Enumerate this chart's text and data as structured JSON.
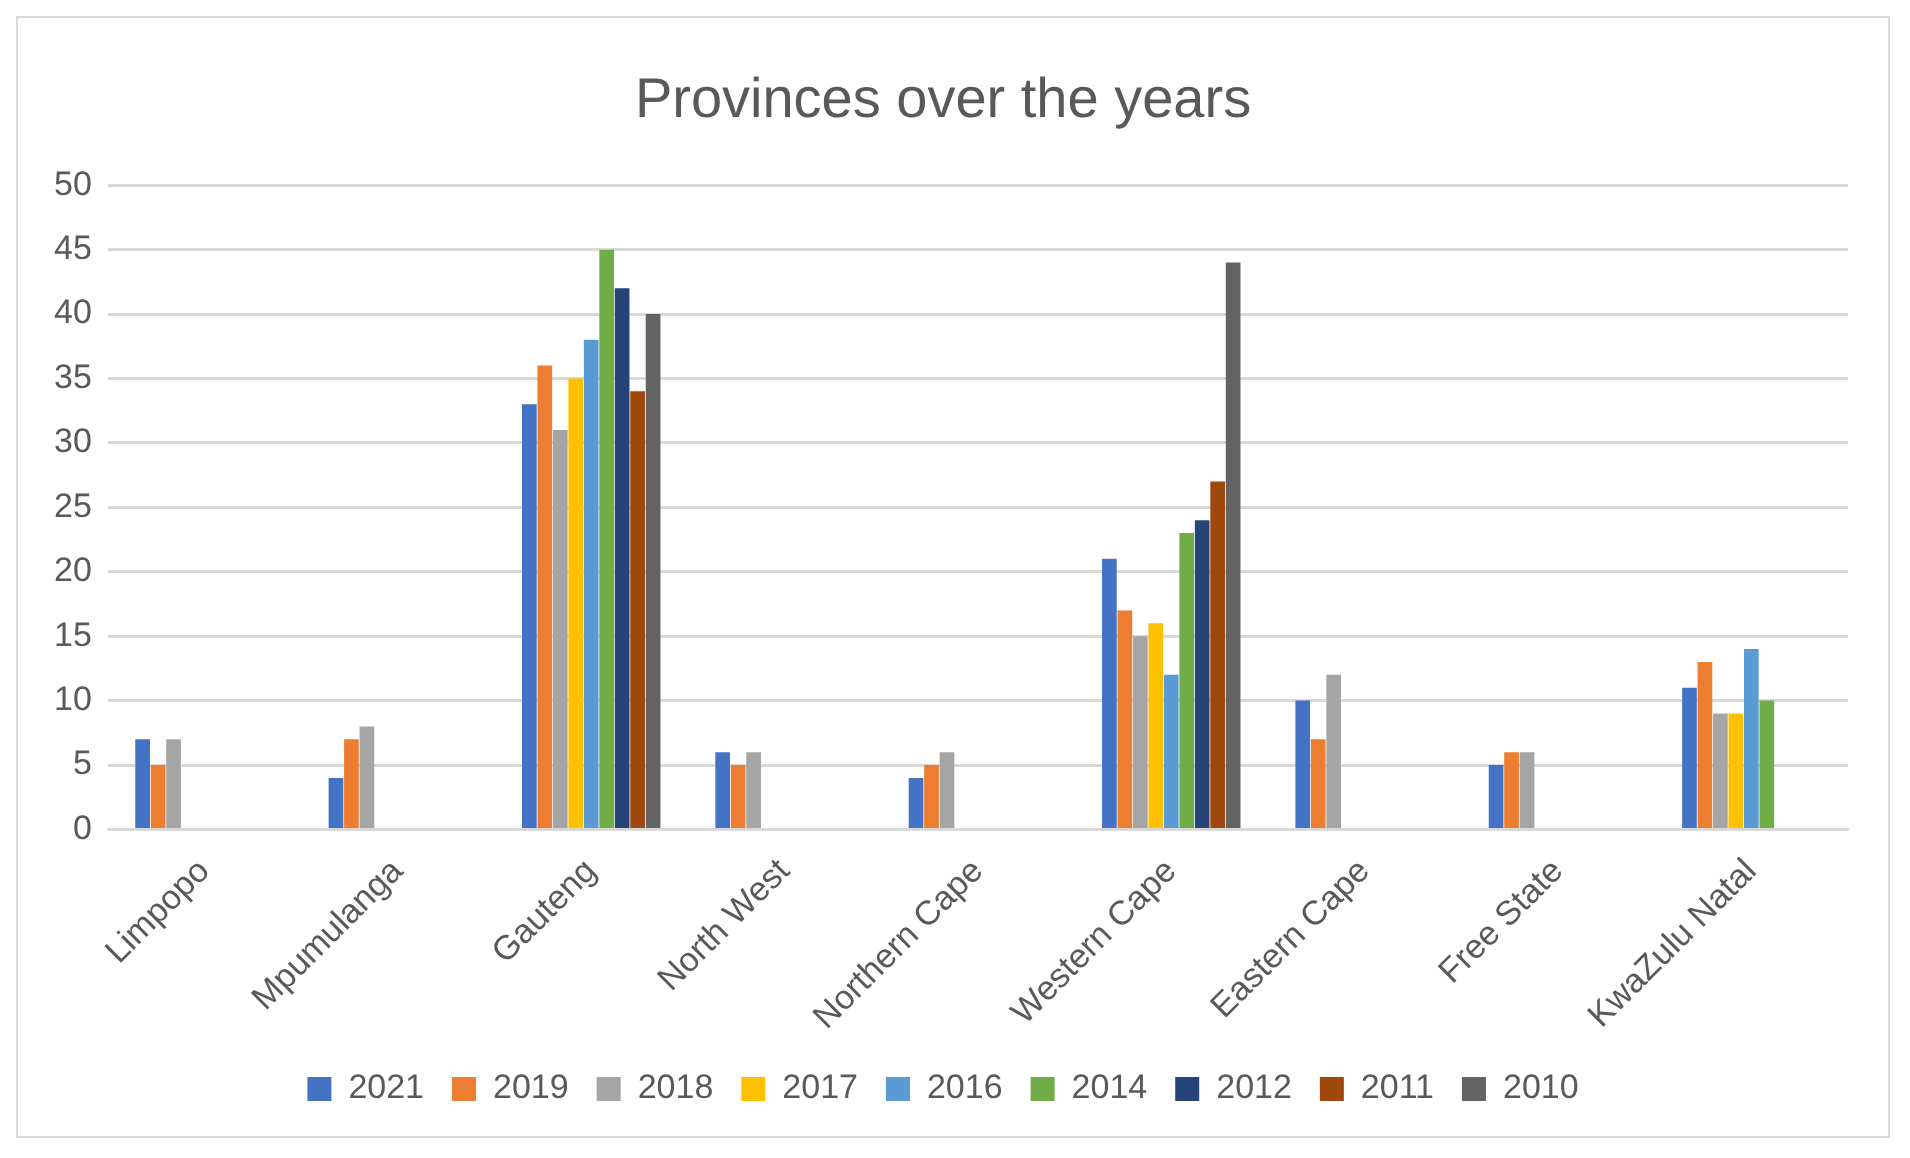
{
  "chart_data": {
    "type": "bar",
    "title": "Provinces over the years",
    "categories": [
      "Limpopo",
      "Mpumulanga",
      "Gauteng",
      "North West",
      "Northern Cape",
      "Western Cape",
      "Eastern Cape",
      "Free State",
      "KwaZulu Natal"
    ],
    "series": [
      {
        "name": "2021",
        "color": "#4472c4",
        "values": [
          7,
          4,
          33,
          6,
          4,
          21,
          10,
          5,
          11
        ]
      },
      {
        "name": "2019",
        "color": "#ed7d31",
        "values": [
          5,
          7,
          36,
          5,
          5,
          17,
          7,
          6,
          13
        ]
      },
      {
        "name": "2018",
        "color": "#a5a5a5",
        "values": [
          7,
          8,
          31,
          6,
          6,
          15,
          12,
          6,
          9
        ]
      },
      {
        "name": "2017",
        "color": "#ffc000",
        "values": [
          null,
          null,
          35,
          null,
          null,
          16,
          null,
          null,
          9
        ]
      },
      {
        "name": "2016",
        "color": "#5b9bd5",
        "values": [
          null,
          null,
          38,
          null,
          null,
          12,
          null,
          null,
          14
        ]
      },
      {
        "name": "2014",
        "color": "#70ad47",
        "values": [
          null,
          null,
          45,
          null,
          null,
          23,
          null,
          null,
          10
        ]
      },
      {
        "name": "2012",
        "color": "#264478",
        "values": [
          null,
          null,
          42,
          null,
          null,
          24,
          null,
          null,
          null
        ]
      },
      {
        "name": "2011",
        "color": "#9e480e",
        "values": [
          null,
          null,
          34,
          null,
          null,
          27,
          null,
          null,
          null
        ]
      },
      {
        "name": "2010",
        "color": "#636363",
        "values": [
          null,
          null,
          40,
          null,
          null,
          44,
          null,
          null,
          null
        ]
      }
    ],
    "ylim": [
      0,
      50
    ],
    "yticks": [
      0,
      5,
      10,
      15,
      20,
      25,
      30,
      35,
      40,
      45,
      50
    ],
    "grid": "y",
    "legend": "bottom"
  }
}
